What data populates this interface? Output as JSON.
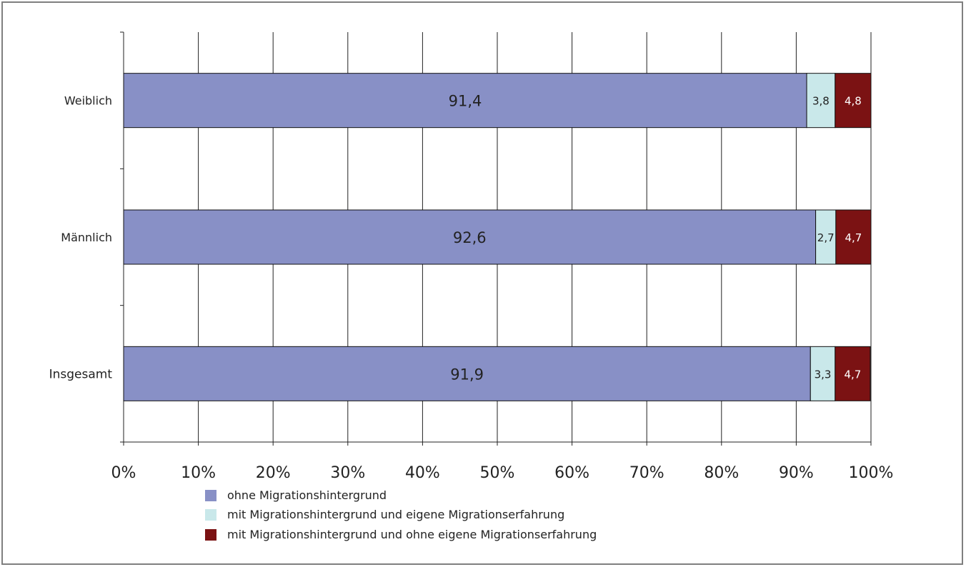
{
  "chart_data": {
    "type": "bar",
    "orientation": "horizontal",
    "stacked": "percent",
    "categories": [
      "Weiblich",
      "Männlich",
      "Insgesamt"
    ],
    "series": [
      {
        "name": "ohne Migrationshintergrund",
        "values": [
          91.4,
          92.6,
          91.9
        ],
        "labels": [
          "91,4",
          "92,6",
          "91,9"
        ],
        "color": "#8890c6"
      },
      {
        "name": "mit Migrationshintergrund und eigene Migrationserfahrung",
        "values": [
          3.8,
          2.7,
          3.3
        ],
        "labels": [
          "3,8",
          "2,7",
          "3,3"
        ],
        "color": "#c9e8ea"
      },
      {
        "name": "mit Migrationshintergrund und ohne eigene Migrationserfahrung",
        "values": [
          4.8,
          4.7,
          4.7
        ],
        "labels": [
          "4,8",
          "4,7",
          "4,7"
        ],
        "color": "#7b1213"
      }
    ],
    "xlim": [
      0,
      100
    ],
    "x_ticks": [
      "0%",
      "10%",
      "20%",
      "30%",
      "40%",
      "50%",
      "60%",
      "70%",
      "80%",
      "90%",
      "100%"
    ],
    "grid": true,
    "legend": "bottom"
  }
}
